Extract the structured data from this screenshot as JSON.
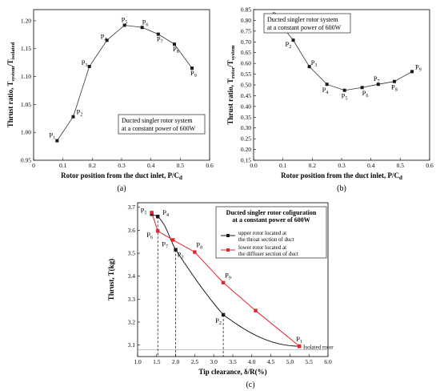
{
  "chart_data": [
    {
      "id": "a",
      "type": "line",
      "caption": "(a)",
      "xlabel": "Rotor position from the duct inlet, P/C",
      "xlabel_sub": "d",
      "ylabel": "Thrust ratio, T",
      "ylabel_sub1": "system",
      "ylabel_mid": "/T",
      "ylabel_sub2": "isolated",
      "xlim": [
        0,
        0.6
      ],
      "ylim": [
        0.95,
        1.22
      ],
      "xticks": [
        "0",
        "0.1",
        "0.2",
        "0.3",
        "0.4",
        "0.5",
        "0.6"
      ],
      "yticks": [
        "0.95",
        "1.00",
        "1.05",
        "1.10",
        "1.15",
        "1.20"
      ],
      "annotation": [
        "Ducted singler rotor system",
        "at a constant power of 600W"
      ],
      "series": [
        {
          "x": [
            0.08,
            0.135,
            0.19,
            0.25,
            0.31,
            0.37,
            0.425,
            0.48,
            0.54
          ],
          "y": [
            0.985,
            1.028,
            1.118,
            1.165,
            1.192,
            1.188,
            1.176,
            1.158,
            1.115
          ],
          "labels": [
            "P",
            "P",
            "P",
            "P",
            "P",
            "P",
            "P",
            "P",
            "P"
          ],
          "subs": [
            "1",
            "2",
            "3",
            "4",
            "5",
            "6",
            "7",
            "8",
            "9"
          ]
        }
      ]
    },
    {
      "id": "b",
      "type": "line",
      "caption": "(b)",
      "xlabel": "Rotor position from the duct inlet, P/C",
      "xlabel_sub": "d",
      "ylabel": "Thrust ratio, T",
      "ylabel_sub1": "rotor",
      "ylabel_mid": "/T",
      "ylabel_sub2": "system",
      "xlim": [
        0,
        0.6
      ],
      "ylim": [
        0.15,
        0.85
      ],
      "xticks": [
        "0.0",
        "0.1",
        "0.2",
        "0.3",
        "0.4",
        "0.5",
        "0.6"
      ],
      "yticks": [
        "0.15",
        "0.20",
        "0.25",
        "0.30",
        "0.35",
        "0.40",
        "0.45",
        "0.50",
        "0.55",
        "0.60",
        "0.65",
        "0.70",
        "0.75",
        "0.80",
        "0.85"
      ],
      "annotation": [
        "Ducted singler rotor system",
        "at a constant power of 600W"
      ],
      "series": [
        {
          "x": [
            0.08,
            0.135,
            0.19,
            0.25,
            0.31,
            0.37,
            0.425,
            0.48,
            0.54
          ],
          "y": [
            0.802,
            0.708,
            0.585,
            0.503,
            0.475,
            0.488,
            0.503,
            0.516,
            0.562
          ],
          "labels": [
            "P",
            "P",
            "P",
            "P",
            "P",
            "P",
            "P",
            "P",
            "P"
          ],
          "subs": [
            "1",
            "2",
            "3",
            "4",
            "5",
            "6",
            "7",
            "8",
            "9"
          ]
        }
      ]
    },
    {
      "id": "c",
      "type": "line",
      "caption": "(c)",
      "xlabel": "Tip clearance, δ/R(%)",
      "ylabel": "Thrust, T(kg)",
      "xlim": [
        1.0,
        6.0
      ],
      "ylim": [
        3.05,
        3.72
      ],
      "xticks": [
        "1.0",
        "1.5",
        "2.0",
        "2.5",
        "3.0",
        "3.5",
        "4.0",
        "4.5",
        "5.0",
        "5.5",
        "6.0"
      ],
      "yticks": [
        "3.1",
        "3.2",
        "3.3",
        "3.4",
        "3.5",
        "3.6",
        "3.7"
      ],
      "legend_title": [
        "Ducted singler rotor cofiguration",
        "at a constant power of 600W"
      ],
      "reference_label": "Isolated rotor",
      "reference_y": 3.08,
      "series": [
        {
          "name": [
            "upper rotor located at",
            "the throat section of duct"
          ],
          "color": "#1a1a1a",
          "marker": "square",
          "x": [
            5.25,
            3.25,
            2.0,
            1.53,
            1.37
          ],
          "y": [
            3.095,
            3.232,
            3.515,
            3.66,
            3.67
          ],
          "labels": [
            "P",
            "P",
            "P",
            "P",
            "P"
          ],
          "subs": [
            "1",
            "2",
            "3",
            "4",
            "5"
          ]
        },
        {
          "name": [
            "lower rotor located at",
            "the diffuser section of duct"
          ],
          "color": "#e8222a",
          "marker": "square",
          "x": [
            5.25,
            4.1,
            3.25,
            2.5,
            1.93,
            1.53,
            1.37
          ],
          "y": [
            3.095,
            3.25,
            3.372,
            3.505,
            3.558,
            3.597,
            3.677
          ],
          "labels": [
            "",
            "",
            "P",
            "P",
            "P",
            "P",
            ""
          ],
          "subs": [
            "",
            "",
            "9",
            "8",
            "7",
            "6",
            ""
          ]
        }
      ]
    }
  ]
}
